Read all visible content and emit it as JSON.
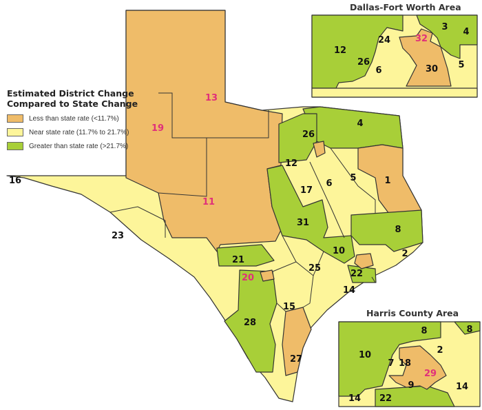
{
  "colors": {
    "less": "#efbc69",
    "near": "#fdf59a",
    "greater": "#a8cf38",
    "label_highlight": "#e0307a",
    "border": "#333333"
  },
  "legend": {
    "title_line1": "Estimated District Change",
    "title_line2": "Compared to State Change",
    "items": [
      {
        "label": "Less than state rate (<11.7%)",
        "category": "less"
      },
      {
        "label": "Near state rate (11.7% to 21.7%)",
        "category": "near"
      },
      {
        "label": "Greater than state rate (>21.7%)",
        "category": "greater"
      }
    ]
  },
  "main_map": {
    "districts": [
      {
        "id": "13",
        "category": "less",
        "highlight": true
      },
      {
        "id": "19",
        "category": "less",
        "highlight": true
      },
      {
        "id": "11",
        "category": "less",
        "highlight": true
      },
      {
        "id": "16",
        "category": "near",
        "highlight": false
      },
      {
        "id": "23",
        "category": "near",
        "highlight": false
      },
      {
        "id": "12",
        "category": "greater",
        "highlight": false
      },
      {
        "id": "26",
        "category": "greater",
        "highlight": false
      },
      {
        "id": "4",
        "category": "greater",
        "highlight": false
      },
      {
        "id": "17",
        "category": "near",
        "highlight": false
      },
      {
        "id": "6",
        "category": "near",
        "highlight": false
      },
      {
        "id": "5",
        "category": "near",
        "highlight": false
      },
      {
        "id": "1",
        "category": "less",
        "highlight": false
      },
      {
        "id": "31",
        "category": "greater",
        "highlight": false
      },
      {
        "id": "8",
        "category": "greater",
        "highlight": false
      },
      {
        "id": "10",
        "category": "greater",
        "highlight": false
      },
      {
        "id": "2",
        "category": "near",
        "highlight": false
      },
      {
        "id": "21",
        "category": "greater",
        "highlight": false
      },
      {
        "id": "20",
        "category": "less",
        "highlight": true
      },
      {
        "id": "25",
        "category": "near",
        "highlight": false
      },
      {
        "id": "22",
        "category": "greater",
        "highlight": false
      },
      {
        "id": "14",
        "category": "near",
        "highlight": false
      },
      {
        "id": "15",
        "category": "near",
        "highlight": false
      },
      {
        "id": "28",
        "category": "greater",
        "highlight": false
      },
      {
        "id": "27",
        "category": "less",
        "highlight": false
      }
    ]
  },
  "dfw_inset": {
    "title": "Dallas-Fort Worth Area",
    "labels": [
      "12",
      "24",
      "32",
      "3",
      "4",
      "26",
      "6",
      "30",
      "5"
    ]
  },
  "harris_inset": {
    "title": "Harris County Area",
    "labels": [
      "8",
      "8",
      "10",
      "2",
      "7",
      "18",
      "29",
      "9",
      "14",
      "14",
      "22"
    ]
  }
}
